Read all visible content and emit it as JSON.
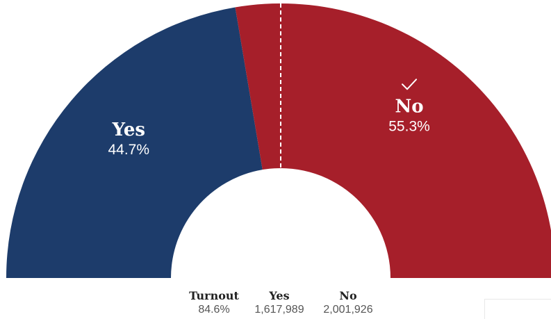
{
  "chart_data": {
    "type": "pie",
    "subtype": "semicircle-donut",
    "series": [
      {
        "name": "Yes",
        "value": 44.7,
        "label": "44.7%",
        "color": "#1d3c6b"
      },
      {
        "name": "No",
        "value": 55.3,
        "label": "55.3%",
        "color": "#a61f2a",
        "winner": true
      }
    ],
    "midline": "dashed",
    "winner_icon": "checkmark-icon"
  },
  "stats": {
    "turnout": {
      "label": "Turnout",
      "value": "84.6%"
    },
    "yes": {
      "label": "Yes",
      "value": "1,617,989"
    },
    "no": {
      "label": "No",
      "value": "2,001,926"
    }
  }
}
